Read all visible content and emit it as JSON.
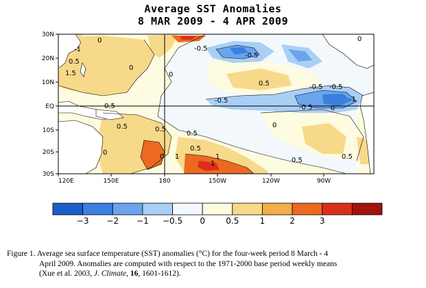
{
  "title": {
    "line1": "Average SST Anomalies",
    "line2": "8 MAR 2009 - 4 APR 2009"
  },
  "map": {
    "lon_ticks": [
      "120E",
      "150E",
      "180",
      "150W",
      "120W",
      "90W"
    ],
    "lat_ticks": [
      "30N",
      "20N",
      "10N",
      "EQ",
      "10S",
      "20S",
      "30S"
    ],
    "reference_lines": [
      "EQ",
      "180"
    ],
    "contour_labels": [
      "0",
      "-0.5",
      "-0.5",
      "-0.5",
      "-0.5",
      "-0.5",
      "-0.5",
      "0.5",
      "0.5",
      "0.5",
      "0.5",
      "0.5",
      "0.5",
      "0.5",
      "0.5",
      "0.5",
      "1",
      "1",
      "1",
      "1.5",
      "-1",
      "-1",
      "0",
      "0",
      "0",
      "0",
      "0",
      "0",
      "0"
    ],
    "colors": {
      "n3": "#1a5fc7",
      "n2": "#3b7fe0",
      "n1": "#6aa4ec",
      "n05": "#a9cff5",
      "z": "#f2f8fc",
      "p0": "#fdfbe0",
      "p05": "#f7d98a",
      "p1": "#f2ae47",
      "p15": "#eb6a1f",
      "p2": "#d9301a",
      "p3": "#a1130c"
    }
  },
  "colorbar": {
    "labels": [
      "-3",
      "-2",
      "-1",
      "-0.5",
      "0",
      "0.5",
      "1",
      "2",
      "3"
    ],
    "colors": [
      "#1a5fc7",
      "#3b7fe0",
      "#6aa4ec",
      "#a9cff5",
      "#f2f8fc",
      "#fdfbe0",
      "#f7d98a",
      "#f2ae47",
      "#eb6a1f",
      "#d9301a",
      "#a1130c"
    ]
  },
  "caption": {
    "part1": "Figure 1. Average sea surface temperature (SST) anomalies (°C) for the four-week period 8 March - 4",
    "part2": "April 2009.   Anomalies are computed with respect to the 1971-2000 base period weekly means",
    "part3_pre": "(Xue et al. 2003, ",
    "journal": "J. Climate",
    "sep": ", ",
    "volume": "16",
    "part3_post": ", 1601-1612)."
  }
}
